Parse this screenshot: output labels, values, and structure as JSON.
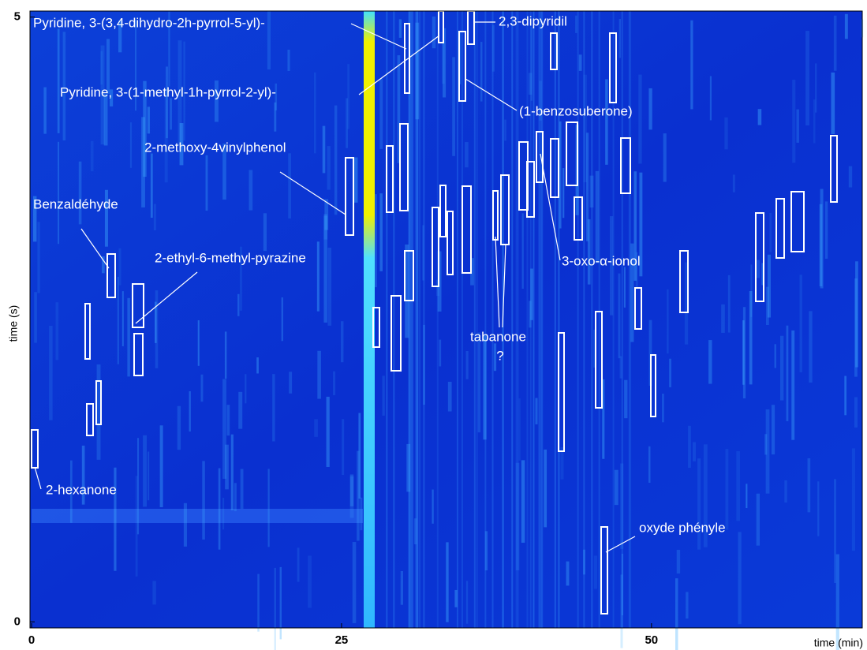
{
  "chart_data": {
    "type": "heatmap",
    "xlabel": "time (min)",
    "ylabel": "time (s)",
    "xlim": [
      0,
      67
    ],
    "ylim": [
      -0.05,
      5.05
    ],
    "xticks": [
      0,
      25,
      50
    ],
    "yticks": [
      0,
      5
    ],
    "annotations": [
      "Pyridine, 3-(3,4-dihydro-2h-pyrrol-5-yl)-",
      "2,3-dipyridil",
      "Pyridine, 3-(1-methyl-1h-pyrrol-2-yl)-",
      "(1-benzosuberone)",
      "2-methoxy-4vinylphenol",
      "Benzaldéhyde",
      "2-ethyl-6-methyl-pyrazine",
      "3-oxo-α-ionol",
      "tabanone",
      "?",
      "2-hexanone",
      "oxyde phényle"
    ]
  }
}
